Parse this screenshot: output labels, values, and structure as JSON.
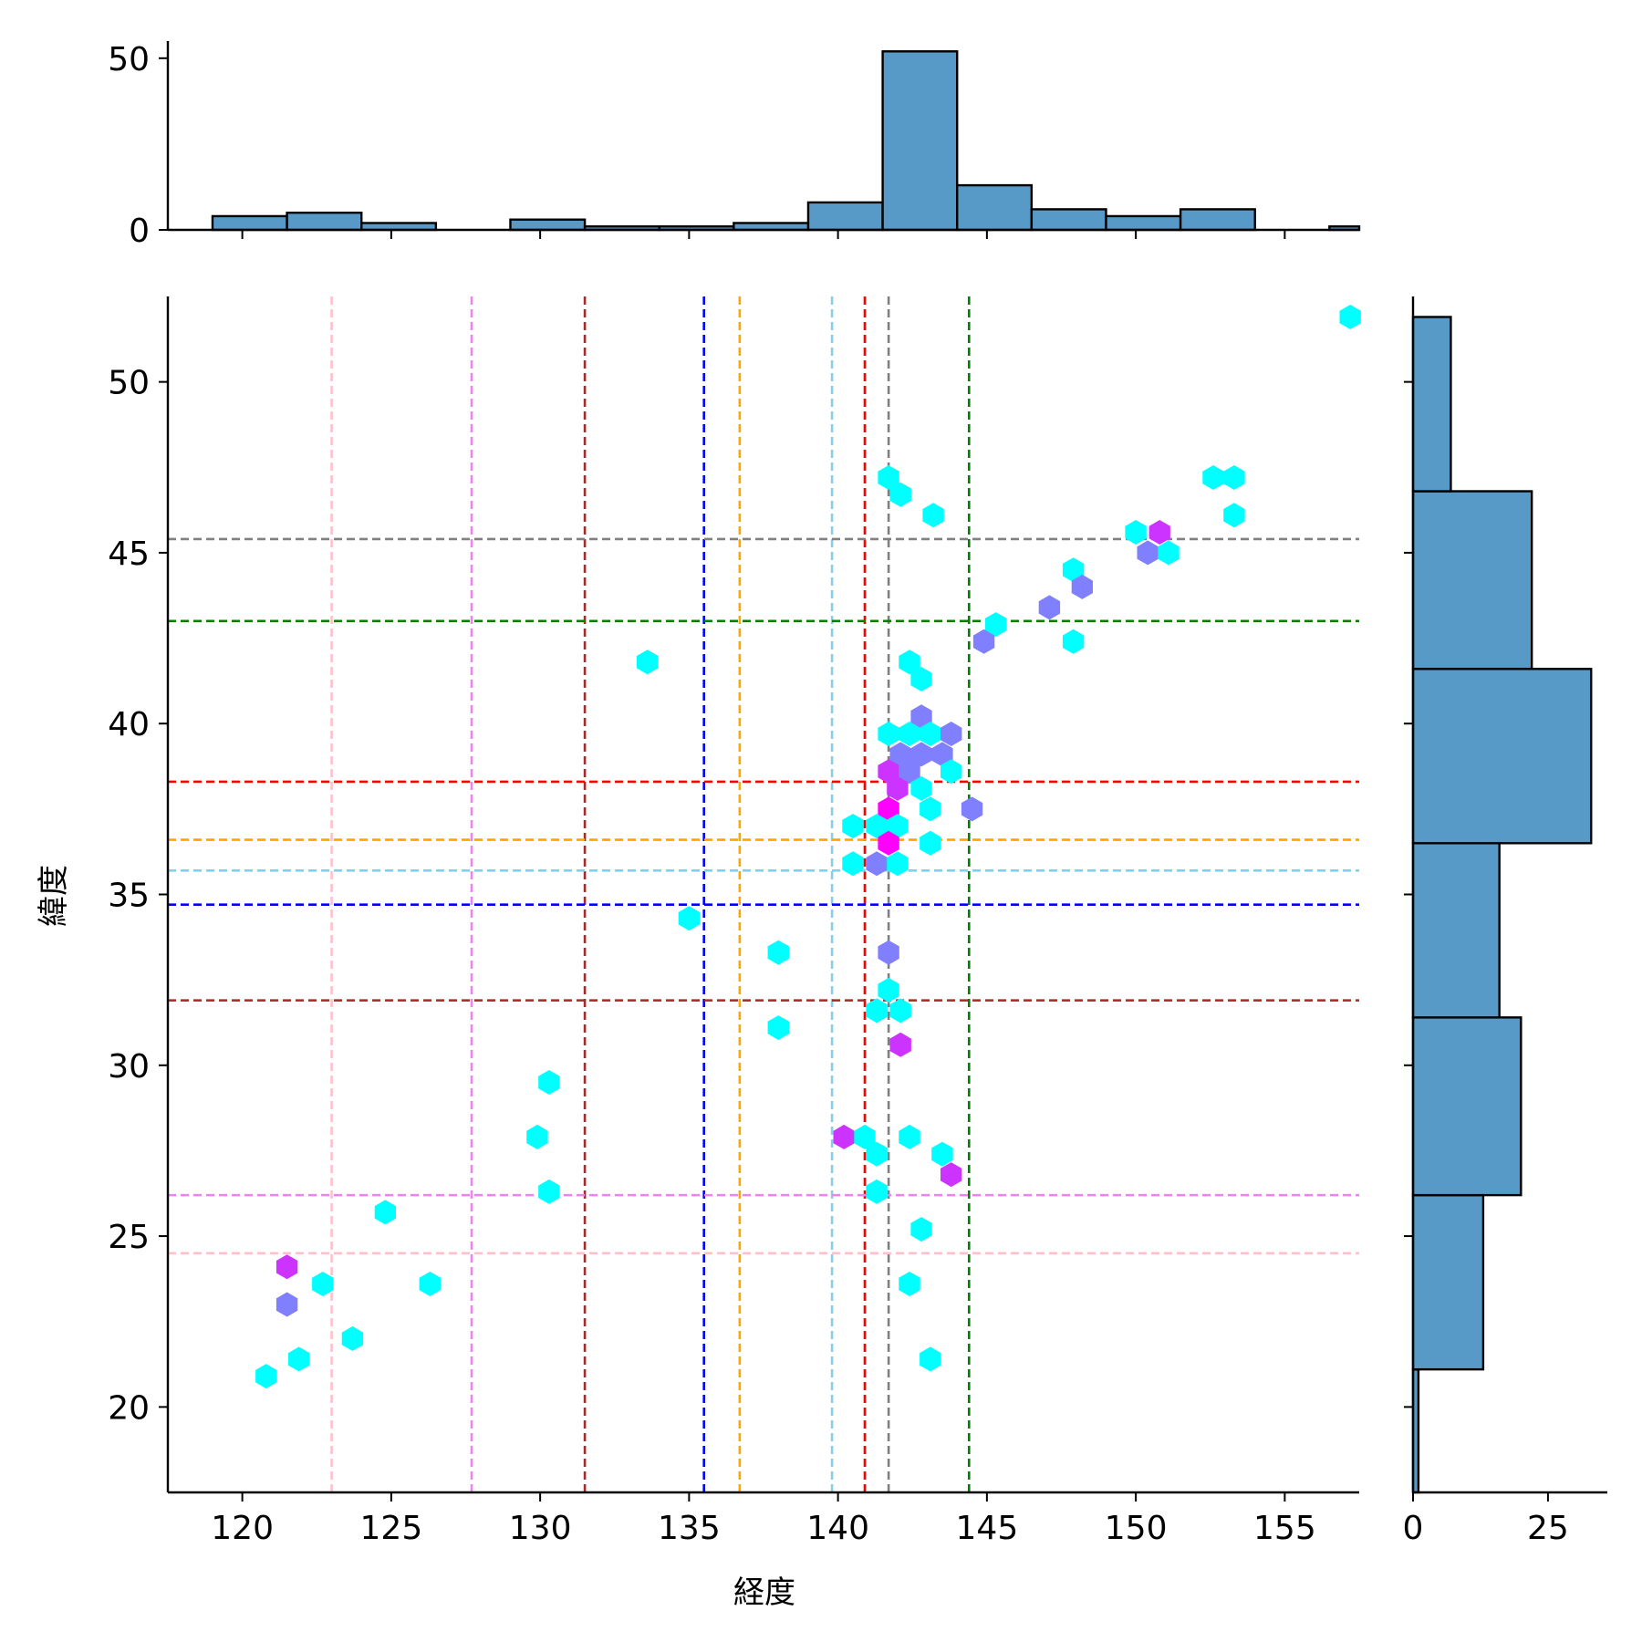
{
  "chart_data": {
    "type": "hexbin-joint",
    "xlabel": "経度",
    "ylabel": "緯度",
    "xlim": [
      117.5,
      157.5
    ],
    "ylim": [
      17.5,
      52.5
    ],
    "xticks": [
      120,
      125,
      130,
      135,
      140,
      145,
      150,
      155
    ],
    "yticks": [
      20,
      25,
      30,
      35,
      40,
      45,
      50
    ],
    "marginal_x": {
      "bins": [
        {
          "x0": 119.0,
          "x1": 121.5,
          "count": 4
        },
        {
          "x0": 121.5,
          "x1": 124.0,
          "count": 5
        },
        {
          "x0": 124.0,
          "x1": 126.5,
          "count": 2
        },
        {
          "x0": 126.5,
          "x1": 129.0,
          "count": 0
        },
        {
          "x0": 129.0,
          "x1": 131.5,
          "count": 3
        },
        {
          "x0": 131.5,
          "x1": 134.0,
          "count": 1
        },
        {
          "x0": 134.0,
          "x1": 136.5,
          "count": 1
        },
        {
          "x0": 136.5,
          "x1": 139.0,
          "count": 2
        },
        {
          "x0": 139.0,
          "x1": 141.5,
          "count": 8
        },
        {
          "x0": 141.5,
          "x1": 144.0,
          "count": 52
        },
        {
          "x0": 144.0,
          "x1": 146.5,
          "count": 13
        },
        {
          "x0": 146.5,
          "x1": 149.0,
          "count": 6
        },
        {
          "x0": 149.0,
          "x1": 151.5,
          "count": 4
        },
        {
          "x0": 151.5,
          "x1": 154.0,
          "count": 6
        },
        {
          "x0": 154.0,
          "x1": 156.5,
          "count": 0
        },
        {
          "x0": 156.5,
          "x1": 159.0,
          "count": 1
        }
      ],
      "ylim": [
        0,
        55
      ],
      "yticks": [
        0,
        50
      ]
    },
    "marginal_y": {
      "bins": [
        {
          "y0": 16.0,
          "y1": 21.1,
          "count": 1
        },
        {
          "y0": 21.1,
          "y1": 26.2,
          "count": 13
        },
        {
          "y0": 26.2,
          "y1": 31.4,
          "count": 20
        },
        {
          "y0": 31.4,
          "y1": 36.5,
          "count": 16
        },
        {
          "y0": 36.5,
          "y1": 41.6,
          "count": 33
        },
        {
          "y0": 41.6,
          "y1": 46.8,
          "count": 22
        },
        {
          "y0": 46.8,
          "y1": 51.9,
          "count": 7
        }
      ],
      "xlim": [
        0,
        36
      ],
      "xticks": [
        0,
        25
      ]
    },
    "hexbins": [
      {
        "x": 157.2,
        "y": 51.9,
        "color": "#00ffff"
      },
      {
        "x": 141.7,
        "y": 47.2,
        "color": "#00ffff"
      },
      {
        "x": 142.1,
        "y": 46.7,
        "color": "#00ffff"
      },
      {
        "x": 143.2,
        "y": 46.1,
        "color": "#00ffff"
      },
      {
        "x": 152.6,
        "y": 47.2,
        "color": "#00ffff"
      },
      {
        "x": 153.3,
        "y": 47.2,
        "color": "#00ffff"
      },
      {
        "x": 153.3,
        "y": 46.1,
        "color": "#00ffff"
      },
      {
        "x": 150.0,
        "y": 45.6,
        "color": "#00ffff"
      },
      {
        "x": 150.8,
        "y": 45.6,
        "color": "#cc33ff"
      },
      {
        "x": 150.4,
        "y": 45.0,
        "color": "#8080ff"
      },
      {
        "x": 151.1,
        "y": 45.0,
        "color": "#00ffff"
      },
      {
        "x": 147.9,
        "y": 44.5,
        "color": "#00ffff"
      },
      {
        "x": 148.2,
        "y": 44.0,
        "color": "#8080ff"
      },
      {
        "x": 147.1,
        "y": 43.4,
        "color": "#8080ff"
      },
      {
        "x": 145.3,
        "y": 42.9,
        "color": "#00ffff"
      },
      {
        "x": 144.9,
        "y": 42.4,
        "color": "#8080ff"
      },
      {
        "x": 147.9,
        "y": 42.4,
        "color": "#00ffff"
      },
      {
        "x": 133.6,
        "y": 41.8,
        "color": "#00ffff"
      },
      {
        "x": 142.4,
        "y": 41.8,
        "color": "#00ffff"
      },
      {
        "x": 142.8,
        "y": 41.3,
        "color": "#00ffff"
      },
      {
        "x": 142.8,
        "y": 40.2,
        "color": "#8080ff"
      },
      {
        "x": 141.7,
        "y": 39.7,
        "color": "#00ffff"
      },
      {
        "x": 142.4,
        "y": 39.7,
        "color": "#00ffff"
      },
      {
        "x": 143.1,
        "y": 39.7,
        "color": "#00ffff"
      },
      {
        "x": 143.8,
        "y": 39.7,
        "color": "#8080ff"
      },
      {
        "x": 142.1,
        "y": 39.1,
        "color": "#8080ff"
      },
      {
        "x": 142.8,
        "y": 39.1,
        "color": "#8080ff"
      },
      {
        "x": 143.5,
        "y": 39.1,
        "color": "#8080ff"
      },
      {
        "x": 141.7,
        "y": 38.6,
        "color": "#cc33ff"
      },
      {
        "x": 142.4,
        "y": 38.6,
        "color": "#8080ff"
      },
      {
        "x": 143.8,
        "y": 38.6,
        "color": "#00ffff"
      },
      {
        "x": 142.0,
        "y": 38.1,
        "color": "#cc33ff"
      },
      {
        "x": 142.8,
        "y": 38.1,
        "color": "#00ffff"
      },
      {
        "x": 141.7,
        "y": 37.5,
        "color": "#ff00ff"
      },
      {
        "x": 143.1,
        "y": 37.5,
        "color": "#00ffff"
      },
      {
        "x": 144.5,
        "y": 37.5,
        "color": "#8080ff"
      },
      {
        "x": 140.5,
        "y": 37.0,
        "color": "#00ffff"
      },
      {
        "x": 141.3,
        "y": 37.0,
        "color": "#00ffff"
      },
      {
        "x": 142.0,
        "y": 37.0,
        "color": "#00ffff"
      },
      {
        "x": 141.7,
        "y": 36.5,
        "color": "#ff00ff"
      },
      {
        "x": 143.1,
        "y": 36.5,
        "color": "#00ffff"
      },
      {
        "x": 140.5,
        "y": 35.9,
        "color": "#00ffff"
      },
      {
        "x": 141.3,
        "y": 35.9,
        "color": "#8080ff"
      },
      {
        "x": 142.0,
        "y": 35.9,
        "color": "#00ffff"
      },
      {
        "x": 135.0,
        "y": 34.3,
        "color": "#00ffff"
      },
      {
        "x": 138.0,
        "y": 33.3,
        "color": "#00ffff"
      },
      {
        "x": 141.7,
        "y": 33.3,
        "color": "#8080ff"
      },
      {
        "x": 141.7,
        "y": 32.2,
        "color": "#00ffff"
      },
      {
        "x": 141.3,
        "y": 31.6,
        "color": "#00ffff"
      },
      {
        "x": 142.1,
        "y": 31.6,
        "color": "#00ffff"
      },
      {
        "x": 138.0,
        "y": 31.1,
        "color": "#00ffff"
      },
      {
        "x": 142.1,
        "y": 30.6,
        "color": "#cc33ff"
      },
      {
        "x": 130.3,
        "y": 29.5,
        "color": "#00ffff"
      },
      {
        "x": 129.9,
        "y": 27.9,
        "color": "#00ffff"
      },
      {
        "x": 140.2,
        "y": 27.9,
        "color": "#cc33ff"
      },
      {
        "x": 140.9,
        "y": 27.9,
        "color": "#00ffff"
      },
      {
        "x": 142.4,
        "y": 27.9,
        "color": "#00ffff"
      },
      {
        "x": 141.3,
        "y": 27.4,
        "color": "#00ffff"
      },
      {
        "x": 143.5,
        "y": 27.4,
        "color": "#00ffff"
      },
      {
        "x": 143.8,
        "y": 26.8,
        "color": "#cc33ff"
      },
      {
        "x": 130.3,
        "y": 26.3,
        "color": "#00ffff"
      },
      {
        "x": 141.3,
        "y": 26.3,
        "color": "#00ffff"
      },
      {
        "x": 124.8,
        "y": 25.7,
        "color": "#00ffff"
      },
      {
        "x": 142.8,
        "y": 25.2,
        "color": "#00ffff"
      },
      {
        "x": 121.5,
        "y": 24.1,
        "color": "#cc33ff"
      },
      {
        "x": 122.7,
        "y": 23.6,
        "color": "#00ffff"
      },
      {
        "x": 126.3,
        "y": 23.6,
        "color": "#00ffff"
      },
      {
        "x": 142.4,
        "y": 23.6,
        "color": "#00ffff"
      },
      {
        "x": 121.5,
        "y": 23.0,
        "color": "#8080ff"
      },
      {
        "x": 123.7,
        "y": 22.0,
        "color": "#00ffff"
      },
      {
        "x": 121.9,
        "y": 21.4,
        "color": "#00ffff"
      },
      {
        "x": 143.1,
        "y": 21.4,
        "color": "#00ffff"
      },
      {
        "x": 120.8,
        "y": 20.9,
        "color": "#00ffff"
      }
    ],
    "vlines": [
      {
        "x": 123.0,
        "color": "pink"
      },
      {
        "x": 127.7,
        "color": "violet"
      },
      {
        "x": 131.5,
        "color": "brown"
      },
      {
        "x": 135.5,
        "color": "blue"
      },
      {
        "x": 136.7,
        "color": "orange"
      },
      {
        "x": 139.8,
        "color": "skyblue"
      },
      {
        "x": 140.9,
        "color": "red"
      },
      {
        "x": 141.7,
        "color": "gray"
      },
      {
        "x": 144.4,
        "color": "green"
      }
    ],
    "hlines": [
      {
        "y": 45.4,
        "color": "gray"
      },
      {
        "y": 43.0,
        "color": "green"
      },
      {
        "y": 38.3,
        "color": "red"
      },
      {
        "y": 36.6,
        "color": "orange"
      },
      {
        "y": 35.7,
        "color": "skyblue"
      },
      {
        "y": 34.7,
        "color": "blue"
      },
      {
        "y": 31.9,
        "color": "brown"
      },
      {
        "y": 26.2,
        "color": "violet"
      },
      {
        "y": 24.5,
        "color": "pink"
      }
    ]
  }
}
